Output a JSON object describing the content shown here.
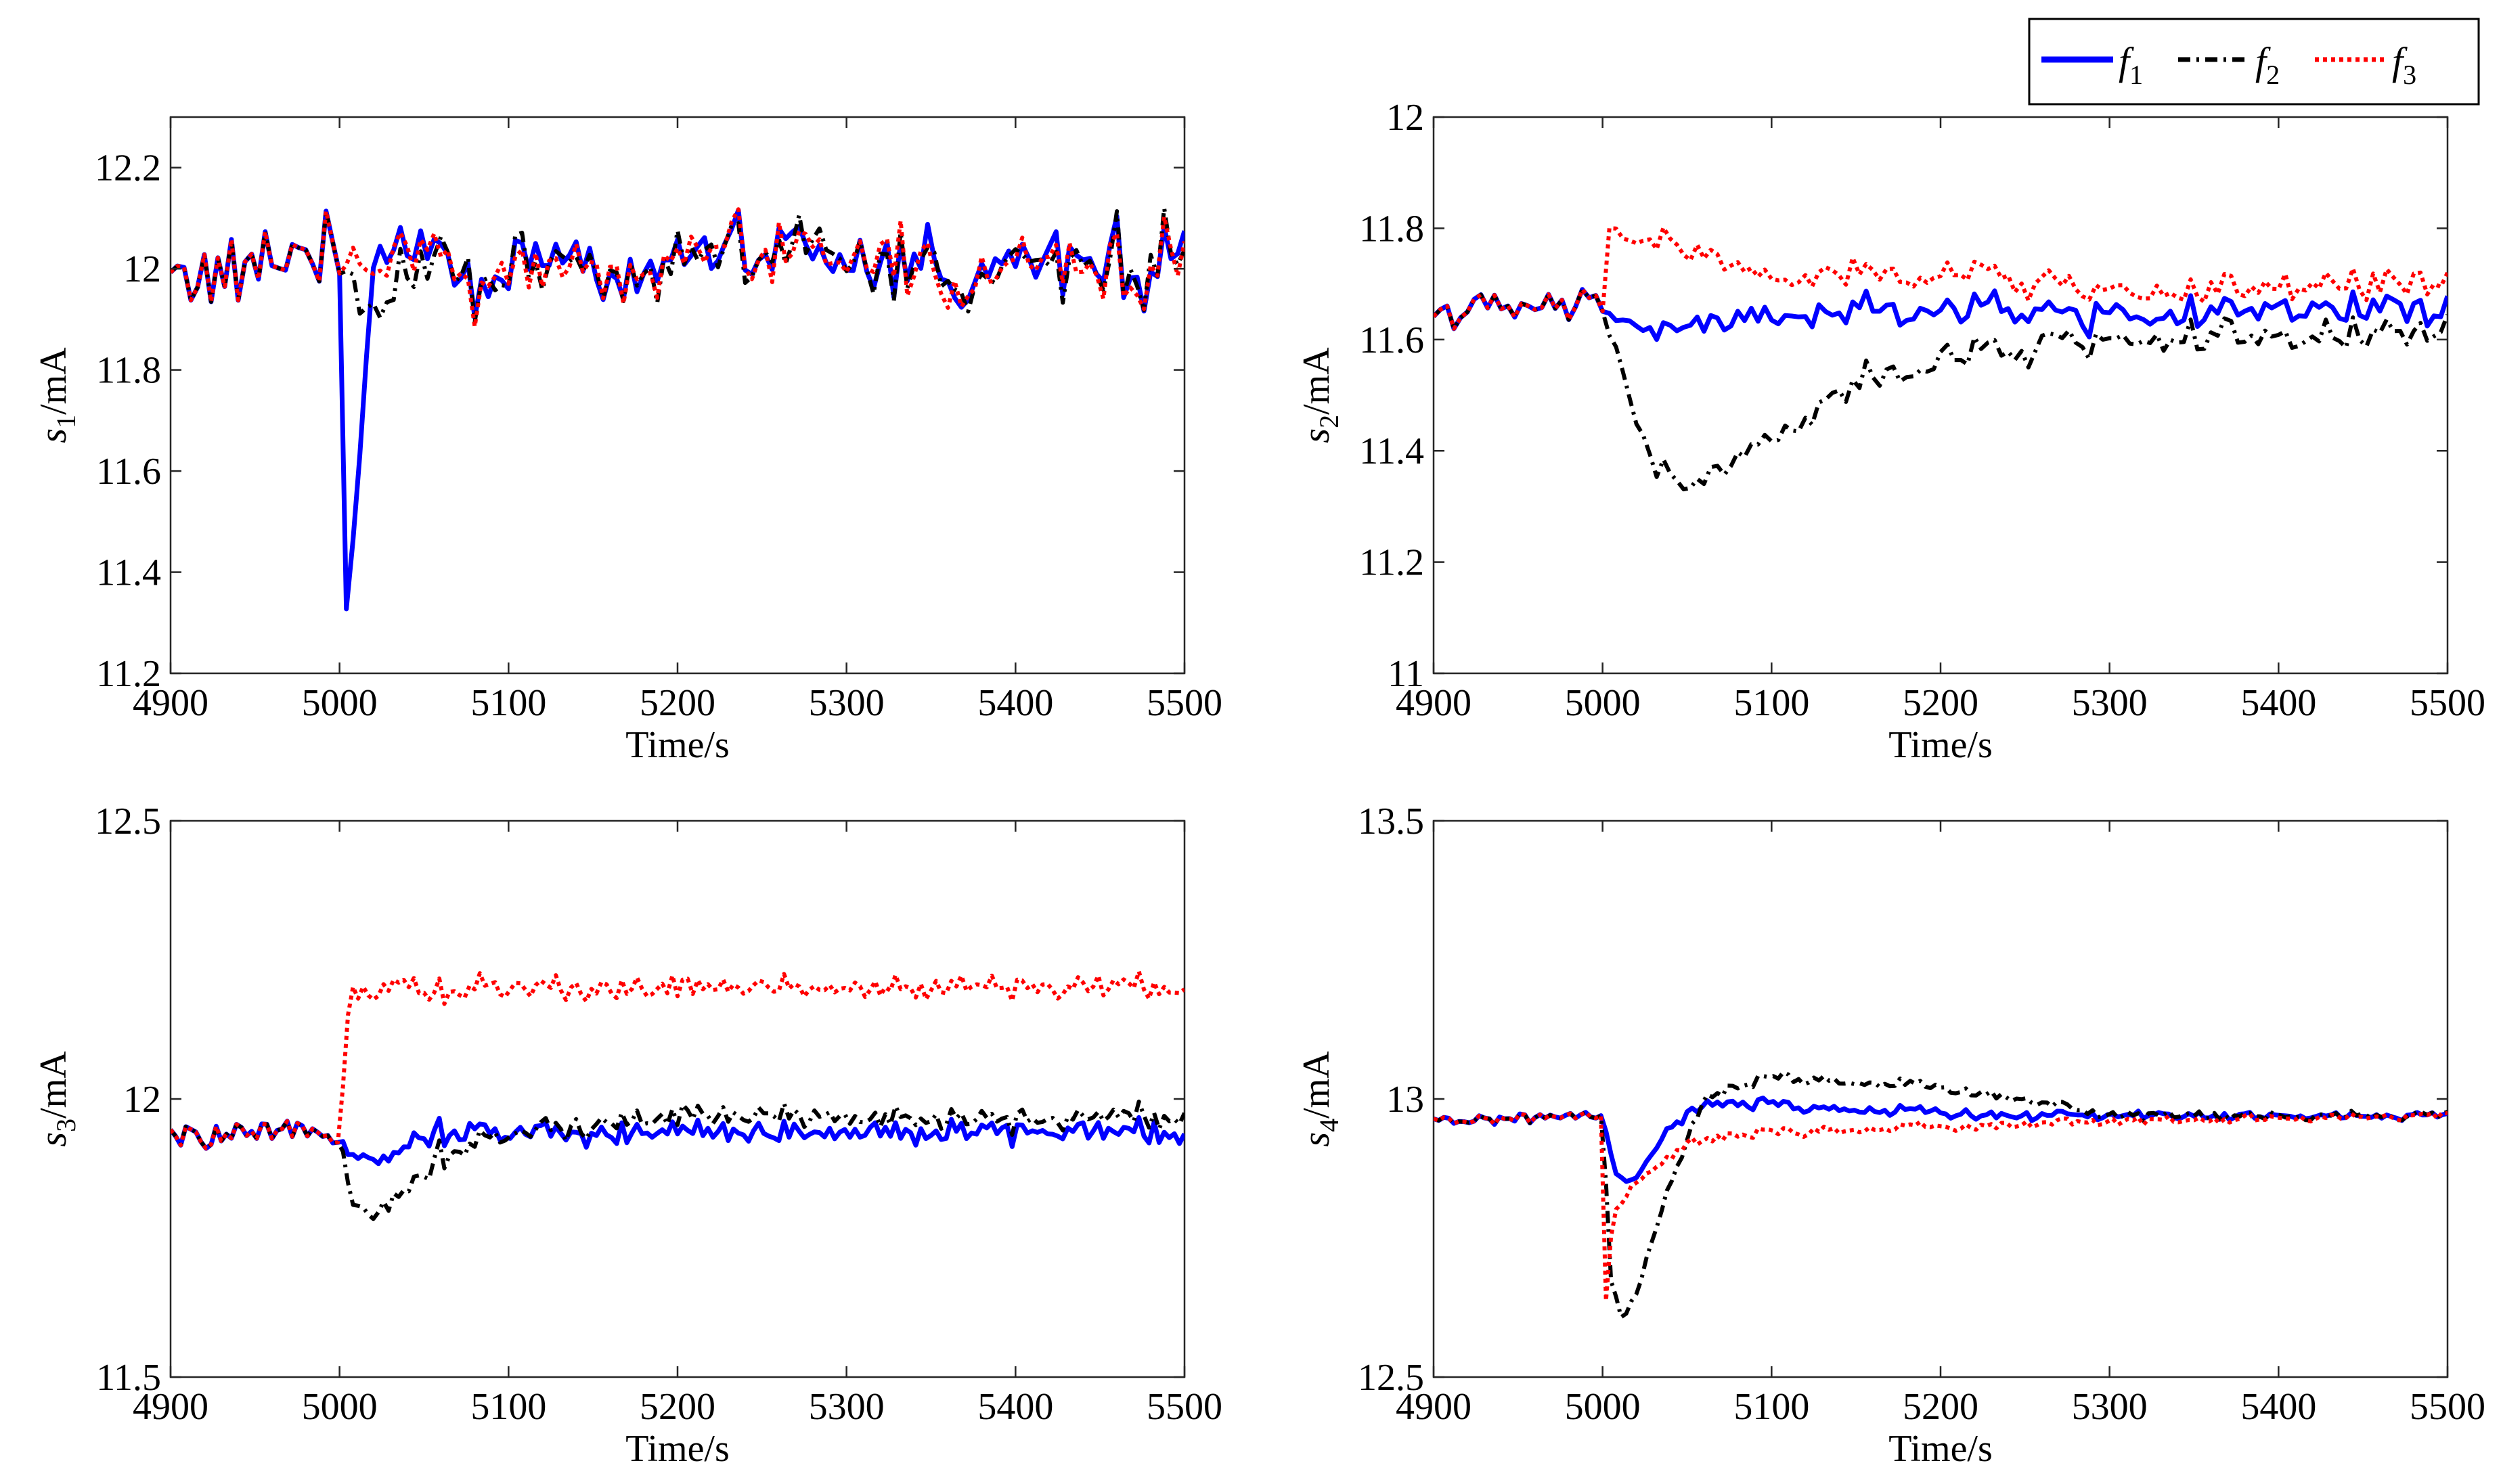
{
  "chart_data": [
    {
      "type": "line",
      "id": "s1",
      "xlabel": "Time/s",
      "ylabel_main": "s",
      "ylabel_sub": "1",
      "ylabel_unit": "/mA",
      "xlim": [
        4900,
        5500
      ],
      "ylim": [
        11.2,
        12.3
      ],
      "xticks": [
        4900,
        5000,
        5100,
        5200,
        5300,
        5400,
        5500
      ],
      "yticks": [
        11.2,
        11.4,
        11.6,
        11.8,
        12.0,
        12.2
      ],
      "ytick_labels": [
        "11.2",
        "11.4",
        "11.6",
        "11.8",
        "12",
        "12.2"
      ],
      "base": [
        [
          4900,
          12.0
        ],
        [
          4925,
          11.98
        ],
        [
          4950,
          12.0
        ],
        [
          4975,
          12.04
        ],
        [
          5000,
          12.02
        ],
        [
          5025,
          12.03
        ],
        [
          5050,
          12.06
        ],
        [
          5075,
          11.95
        ],
        [
          5100,
          12.02
        ],
        [
          5125,
          12.0
        ],
        [
          5150,
          12.01
        ],
        [
          5175,
          11.96
        ],
        [
          5200,
          12.03
        ],
        [
          5225,
          12.0
        ],
        [
          5250,
          12.04
        ],
        [
          5275,
          12.03
        ],
        [
          5300,
          12.0
        ],
        [
          5325,
          12.02
        ],
        [
          5350,
          12.01
        ],
        [
          5375,
          11.98
        ],
        [
          5400,
          12.01
        ],
        [
          5425,
          12.02
        ],
        [
          5450,
          12.0
        ],
        [
          5475,
          12.01
        ],
        [
          5500,
          12.03
        ]
      ],
      "noise_amp": 0.09,
      "noise_step": 4,
      "disturbance_time": 5000,
      "series": [
        {
          "name": "f1",
          "disturbance": [
            [
              5000,
              0
            ],
            [
              5001,
              -0.55
            ],
            [
              5004,
              -0.72
            ],
            [
              5008,
              -0.6
            ],
            [
              5012,
              -0.35
            ],
            [
              5018,
              -0.05
            ],
            [
              5024,
              0.05
            ],
            [
              5030,
              0
            ]
          ]
        },
        {
          "name": "f2",
          "disturbance": [
            [
              5000,
              0
            ],
            [
              5010,
              -0.08
            ],
            [
              5020,
              -0.1
            ],
            [
              5030,
              -0.08
            ],
            [
              5045,
              -0.04
            ],
            [
              5060,
              0
            ]
          ]
        },
        {
          "name": "f3",
          "disturbance": [
            [
              5000,
              0
            ],
            [
              5500,
              0
            ]
          ]
        }
      ]
    },
    {
      "type": "line",
      "id": "s2",
      "xlabel": "Time/s",
      "ylabel_main": "s",
      "ylabel_sub": "2",
      "ylabel_unit": "/mA",
      "xlim": [
        4900,
        5500
      ],
      "ylim": [
        11.0,
        12.0
      ],
      "xticks": [
        4900,
        5000,
        5100,
        5200,
        5300,
        5400,
        5500
      ],
      "yticks": [
        11.0,
        11.2,
        11.4,
        11.6,
        11.8,
        12.0
      ],
      "ytick_labels": [
        "11",
        "11.2",
        "11.4",
        "11.6",
        "11.8",
        "12"
      ],
      "base": [
        [
          4900,
          11.65
        ],
        [
          5000,
          11.66
        ],
        [
          5100,
          11.64
        ],
        [
          5200,
          11.65
        ],
        [
          5300,
          11.64
        ],
        [
          5400,
          11.64
        ],
        [
          5500,
          11.65
        ]
      ],
      "noise_amp": 0.035,
      "noise_step": 4,
      "disturbance_time": 5000,
      "series": [
        {
          "name": "f1",
          "disturbance": [
            [
              5000,
              0
            ],
            [
              5010,
              -0.02
            ],
            [
              5030,
              -0.04
            ],
            [
              5060,
              -0.02
            ],
            [
              5100,
              0
            ],
            [
              5500,
              0.01
            ]
          ]
        },
        {
          "name": "f2",
          "disturbance": [
            [
              5000,
              0
            ],
            [
              5015,
              -0.15
            ],
            [
              5030,
              -0.27
            ],
            [
              5045,
              -0.32
            ],
            [
              5060,
              -0.3
            ],
            [
              5100,
              -0.22
            ],
            [
              5150,
              -0.13
            ],
            [
              5200,
              -0.08
            ],
            [
              5300,
              -0.04
            ],
            [
              5400,
              -0.04
            ],
            [
              5500,
              -0.03
            ]
          ]
        },
        {
          "name": "f3",
          "disturbance": [
            [
              5000,
              0
            ],
            [
              5003,
              0.14
            ],
            [
              5020,
              0.13
            ],
            [
              5060,
              0.1
            ],
            [
              5100,
              0.07
            ],
            [
              5200,
              0.07
            ],
            [
              5300,
              0.05
            ],
            [
              5400,
              0.05
            ],
            [
              5500,
              0.06
            ]
          ]
        }
      ]
    },
    {
      "type": "line",
      "id": "s3",
      "xlabel": "Time/s",
      "ylabel_main": "s",
      "ylabel_sub": "3",
      "ylabel_unit": "/mA",
      "xlim": [
        4900,
        5500
      ],
      "ylim": [
        11.5,
        12.5
      ],
      "xticks": [
        4900,
        5000,
        5100,
        5200,
        5300,
        5400,
        5500
      ],
      "yticks": [
        11.5,
        12.0,
        12.5
      ],
      "ytick_labels": [
        "11.5",
        "12",
        "12.5"
      ],
      "base": [
        [
          4900,
          11.93
        ],
        [
          5000,
          11.94
        ],
        [
          5100,
          11.94
        ],
        [
          5200,
          11.94
        ],
        [
          5300,
          11.94
        ],
        [
          5400,
          11.94
        ],
        [
          5500,
          11.94
        ]
      ],
      "noise_amp": 0.025,
      "noise_step": 3,
      "disturbance_time": 5000,
      "series": [
        {
          "name": "f1",
          "disturbance": [
            [
              5000,
              0
            ],
            [
              5005,
              -0.03
            ],
            [
              5030,
              -0.05
            ],
            [
              5050,
              0.0
            ],
            [
              5500,
              0.0
            ]
          ]
        },
        {
          "name": "f2",
          "disturbance": [
            [
              5000,
              0
            ],
            [
              5008,
              -0.12
            ],
            [
              5025,
              -0.14
            ],
            [
              5040,
              -0.1
            ],
            [
              5060,
              -0.04
            ],
            [
              5100,
              0.0
            ],
            [
              5200,
              0.03
            ],
            [
              5300,
              0.03
            ],
            [
              5400,
              0.02
            ],
            [
              5500,
              0.03
            ]
          ]
        },
        {
          "name": "f3",
          "disturbance": [
            [
              5000,
              0
            ],
            [
              5006,
              0.26
            ],
            [
              5050,
              0.26
            ],
            [
              5200,
              0.26
            ],
            [
              5500,
              0.26
            ]
          ]
        }
      ]
    },
    {
      "type": "line",
      "id": "s4",
      "xlabel": "Time/s",
      "ylabel_main": "s",
      "ylabel_sub": "4",
      "ylabel_unit": "/mA",
      "xlim": [
        4900,
        5500
      ],
      "ylim": [
        12.5,
        13.5
      ],
      "xticks": [
        4900,
        5000,
        5100,
        5200,
        5300,
        5400,
        5500
      ],
      "yticks": [
        12.5,
        13.0,
        13.5
      ],
      "ytick_labels": [
        "12.5",
        "13",
        "13.5"
      ],
      "base": [
        [
          4900,
          12.96
        ],
        [
          5000,
          12.97
        ],
        [
          5100,
          12.97
        ],
        [
          5200,
          12.97
        ],
        [
          5300,
          12.97
        ],
        [
          5400,
          12.97
        ],
        [
          5500,
          12.97
        ]
      ],
      "noise_amp": 0.01,
      "noise_step": 3,
      "disturbance_time": 5000,
      "series": [
        {
          "name": "f1",
          "disturbance": [
            [
              5000,
              0
            ],
            [
              5008,
              -0.11
            ],
            [
              5018,
              -0.12
            ],
            [
              5040,
              -0.02
            ],
            [
              5060,
              0.02
            ],
            [
              5100,
              0.02
            ],
            [
              5150,
              0.01
            ],
            [
              5250,
              0.0
            ],
            [
              5500,
              0.0
            ]
          ]
        },
        {
          "name": "f2",
          "disturbance": [
            [
              5000,
              0
            ],
            [
              5005,
              -0.3
            ],
            [
              5012,
              -0.37
            ],
            [
              5020,
              -0.32
            ],
            [
              5040,
              -0.12
            ],
            [
              5060,
              0.03
            ],
            [
              5100,
              0.07
            ],
            [
              5150,
              0.06
            ],
            [
              5200,
              0.05
            ],
            [
              5250,
              0.03
            ],
            [
              5300,
              0.0
            ],
            [
              5500,
              0.0
            ]
          ]
        },
        {
          "name": "f3",
          "disturbance": [
            [
              5000,
              0
            ],
            [
              5001,
              -0.37
            ],
            [
              5006,
              -0.18
            ],
            [
              5020,
              -0.12
            ],
            [
              5050,
              -0.05
            ],
            [
              5100,
              -0.03
            ],
            [
              5200,
              -0.02
            ],
            [
              5300,
              -0.01
            ],
            [
              5500,
              0.0
            ]
          ]
        }
      ]
    }
  ],
  "legend": {
    "entries": [
      {
        "name": "f1",
        "symbol": "f",
        "sub": "1"
      },
      {
        "name": "f2",
        "symbol": "f",
        "sub": "2"
      },
      {
        "name": "f3",
        "symbol": "f",
        "sub": "3"
      }
    ]
  },
  "styles": {
    "f1": {
      "color": "#0000ff",
      "dash": ""
    },
    "f2": {
      "color": "#000000",
      "dash": "18,9,4,9"
    },
    "f3": {
      "color": "#ff0000",
      "dash": "6,6"
    }
  }
}
